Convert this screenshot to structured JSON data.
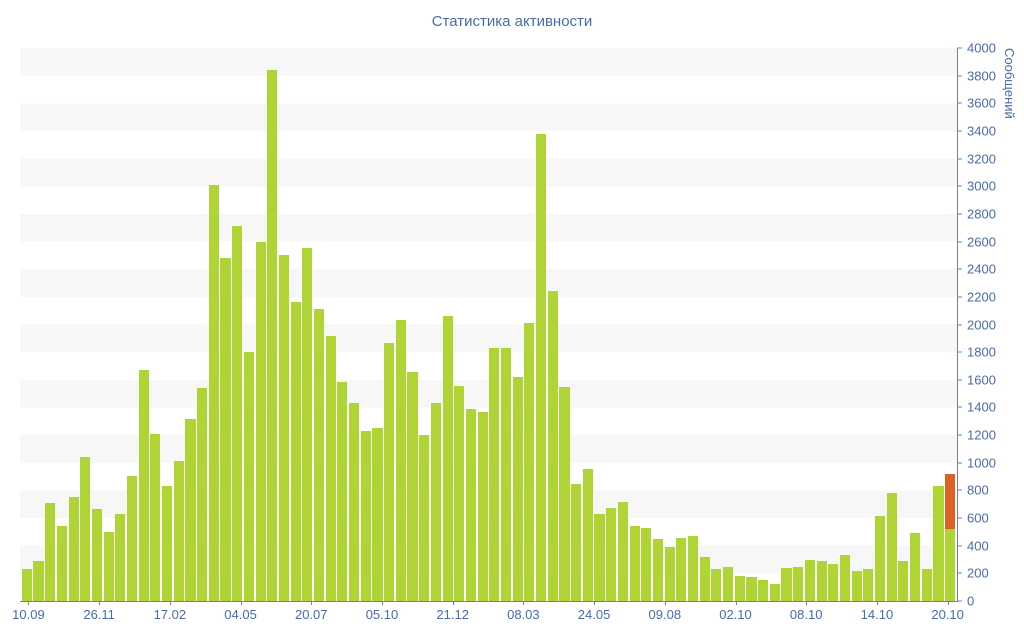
{
  "chart_data": {
    "type": "bar",
    "title": "Статистика активности",
    "ylabel": "Сообщений",
    "xlabel": "",
    "ylim": [
      0,
      4000
    ],
    "ytick_step": 200,
    "grid": "alternating horizontal bands of 200 units",
    "legend_position": "none",
    "xtick_labels": [
      "10.09",
      "26.11",
      "17.02",
      "04.05",
      "20.07",
      "05.10",
      "21.12",
      "08.03",
      "24.05",
      "09.08",
      "02.10",
      "08.10",
      "14.10",
      "20.10"
    ],
    "values": [
      230,
      290,
      710,
      540,
      750,
      1040,
      665,
      500,
      630,
      905,
      1670,
      1210,
      830,
      1010,
      1320,
      1540,
      3010,
      2480,
      2715,
      1800,
      2600,
      3840,
      2500,
      2160,
      2550,
      2110,
      1920,
      1585,
      1430,
      1230,
      1250,
      1865,
      2030,
      1660,
      1200,
      1430,
      2060,
      1555,
      1390,
      1370,
      1830,
      1830,
      1620,
      2010,
      3380,
      2240,
      1550,
      850,
      955,
      630,
      675,
      715,
      540,
      530,
      450,
      390,
      455,
      470,
      320,
      230,
      245,
      180,
      175,
      155,
      120,
      240,
      245,
      300,
      290,
      270,
      330,
      215,
      235,
      615,
      780,
      290,
      490,
      230,
      830
    ],
    "stacked_final_bar": {
      "green_value": 520,
      "orange_value": 400,
      "total": 920
    },
    "colors": {
      "bar_green": "#aed435",
      "bar_orange": "#dc6127",
      "axis_text": "#4a6aad",
      "axis_line": "#7080ab",
      "stripe": "#f7f7f7",
      "background": "#ffffff"
    }
  }
}
